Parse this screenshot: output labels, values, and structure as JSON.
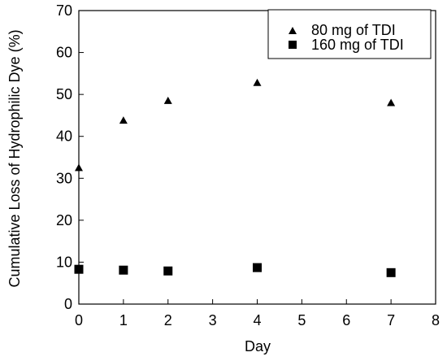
{
  "chart_data": {
    "type": "scatter",
    "title": "",
    "xlabel": "Day",
    "ylabel": "Cumulative Loss of Hydrophilic Dye (%)",
    "xlim": [
      0,
      8
    ],
    "ylim": [
      0,
      70
    ],
    "x_ticks": [
      0,
      1,
      2,
      3,
      4,
      5,
      6,
      7,
      8
    ],
    "y_ticks": [
      0,
      10,
      20,
      30,
      40,
      50,
      60,
      70
    ],
    "grid": false,
    "legend_position": "top-right",
    "series": [
      {
        "name": "80 mg of TDI",
        "marker": "triangle",
        "color": "#000000",
        "x": [
          0,
          1,
          2,
          4,
          7
        ],
        "y": [
          32.5,
          43.8,
          48.5,
          52.8,
          48
        ]
      },
      {
        "name": "160 mg of TDI",
        "marker": "square",
        "color": "#000000",
        "x": [
          0,
          1,
          2,
          4,
          7
        ],
        "y": [
          8.3,
          8.1,
          7.9,
          8.7,
          7.5
        ]
      }
    ]
  }
}
